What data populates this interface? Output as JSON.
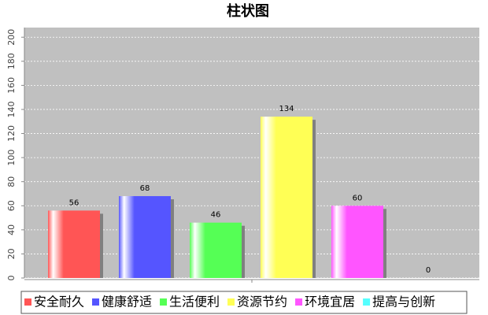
{
  "chart_data": {
    "type": "bar",
    "title": "柱状图",
    "categories": [
      null
    ],
    "series": [
      {
        "name": "安全耐久",
        "color": "#ff5555",
        "values": [
          56
        ]
      },
      {
        "name": "健康舒适",
        "color": "#5555ff",
        "values": [
          68
        ]
      },
      {
        "name": "生活便利",
        "color": "#55ff55",
        "values": [
          46
        ]
      },
      {
        "name": "资源节约",
        "color": "#ffff55",
        "values": [
          134
        ]
      },
      {
        "name": "环境宜居",
        "color": "#ff55ff",
        "values": [
          60
        ]
      },
      {
        "name": "提高与创新",
        "color": "#55ffff",
        "values": [
          0
        ]
      }
    ],
    "ylim": [
      0,
      208
    ],
    "yticks": [
      0,
      20,
      40,
      60,
      80,
      100,
      120,
      140,
      160,
      180,
      200
    ],
    "grid": true
  }
}
